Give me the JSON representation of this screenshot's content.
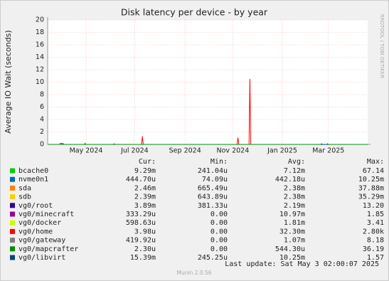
{
  "chart_data": {
    "type": "line",
    "title": "Disk latency per device - by year",
    "ylabel": "Average IO Wait (seconds)",
    "side_note": "RRDTOOL / TOBI OETIKER",
    "xlim": [
      0,
      375
    ],
    "xticks": [
      {
        "value": 45,
        "label": "May 2024"
      },
      {
        "value": 102,
        "label": "Jul 2024"
      },
      {
        "value": 161,
        "label": "Sep 2024"
      },
      {
        "value": 217,
        "label": "Nov 2024"
      },
      {
        "value": 275,
        "label": "Jan 2025"
      },
      {
        "value": 329,
        "label": "Mar 2025"
      }
    ],
    "ylim": [
      0,
      20
    ],
    "yticks": [
      0,
      2,
      4,
      6,
      8,
      10,
      12,
      14,
      16,
      18,
      20
    ],
    "grid": true,
    "stat_headers": [
      "Cur:",
      "Min:",
      "Avg:",
      "Max:"
    ],
    "series": [
      {
        "name": "bcache0",
        "color": "#00cc00",
        "x": [
          43,
          44,
          45
        ],
        "values": [
          0,
          0.2,
          0
        ],
        "stats": [
          "9.29m",
          "241.04u",
          "7.12m",
          "67.14"
        ]
      },
      {
        "name": "nvme0n1",
        "color": "#0066b3",
        "x": [
          0,
          375
        ],
        "values": [
          0,
          0
        ],
        "stats": [
          "444.70u",
          "74.09u",
          "442.18u",
          "10.25m"
        ]
      },
      {
        "name": "sda",
        "color": "#ff8000",
        "x": [
          0,
          375
        ],
        "values": [
          0,
          0
        ],
        "stats": [
          "2.46m",
          "665.49u",
          "2.38m",
          "37.88m"
        ]
      },
      {
        "name": "sdb",
        "color": "#ffcc00",
        "x": [
          0,
          375
        ],
        "values": [
          0,
          0
        ],
        "stats": [
          "2.39m",
          "643.89u",
          "2.38m",
          "35.29m"
        ]
      },
      {
        "name": "vg0/root",
        "color": "#330099",
        "x": [
          0,
          375
        ],
        "values": [
          0,
          0
        ],
        "stats": [
          "3.89m",
          "381.33u",
          "2.19m",
          "13.20"
        ]
      },
      {
        "name": "vg0/minecraft",
        "color": "#990099",
        "x": [
          14,
          15,
          16,
          17,
          18,
          19,
          77,
          78,
          79
        ],
        "values": [
          0,
          0.15,
          0.2,
          0.1,
          0.15,
          0,
          0,
          0.1,
          0
        ],
        "stats": [
          "333.29u",
          "0.00",
          "10.97m",
          "1.85"
        ]
      },
      {
        "name": "vg0/docker",
        "color": "#ccff00",
        "x": [
          0,
          375
        ],
        "values": [
          0,
          0
        ],
        "stats": [
          "598.63u",
          "0.00",
          "1.81m",
          "3.41"
        ]
      },
      {
        "name": "vg0/home",
        "color": "#ff0000",
        "x": [
          110,
          111,
          112,
          222,
          223,
          224,
          236,
          237,
          238
        ],
        "values": [
          0,
          1.3,
          0,
          0,
          1.1,
          0,
          0,
          10.5,
          0
        ],
        "stats": [
          "3.98u",
          "0.00",
          "32.30m",
          "2.80k"
        ]
      },
      {
        "name": "vg0/gateway",
        "color": "#808080",
        "x": [
          0,
          375
        ],
        "values": [
          0,
          0
        ],
        "stats": [
          "419.92u",
          "0.00",
          "1.07m",
          "8.18"
        ]
      },
      {
        "name": "vg0/mapcrafter",
        "color": "#008f00",
        "x": [
          0,
          375
        ],
        "values": [
          0,
          0
        ],
        "stats": [
          "2.30u",
          "0.00",
          "544.30u",
          "36.19"
        ]
      },
      {
        "name": "vg0/libvirt",
        "color": "#00487d",
        "x": [
          320,
          321,
          322,
          327,
          328,
          329
        ],
        "values": [
          0,
          0.1,
          0,
          0,
          0.1,
          0
        ],
        "stats": [
          "15.39m",
          "245.25u",
          "10.25m",
          "1.57"
        ]
      }
    ],
    "last_update": "Last update: Sat May  3 02:00:07 2025",
    "footer": "Munin 2.0.56"
  }
}
